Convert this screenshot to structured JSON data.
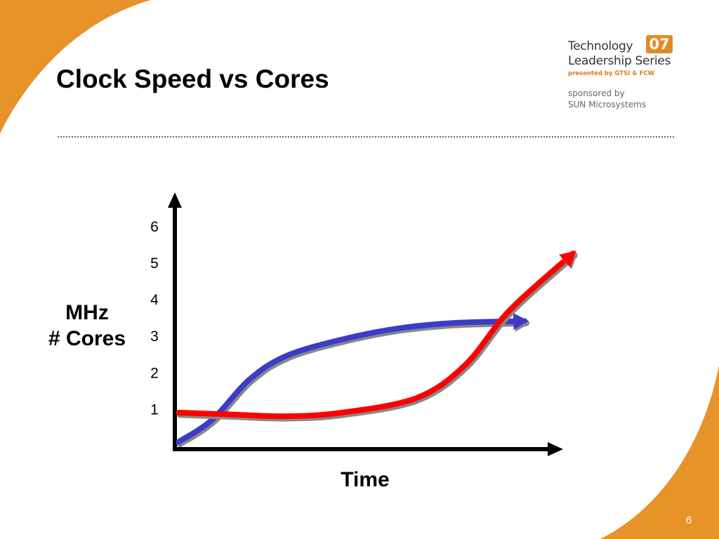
{
  "slide": {
    "title": "Clock Speed vs Cores",
    "page_number": "6",
    "theme_color": "#e8922a"
  },
  "logo": {
    "line1": "Technology",
    "badge": "07",
    "line2": "Leadership Series",
    "presented": "presented by GTSI & FCW",
    "sponsored_by": "sponsored by",
    "sponsor": "SUN Microsystems"
  },
  "chart_data": {
    "type": "line",
    "xlabel": "Time",
    "ylabel_lines": [
      "MHz",
      "# Cores"
    ],
    "yticks": [
      "1",
      "2",
      "3",
      "4",
      "5",
      "6"
    ],
    "ylim": [
      0,
      6.5
    ],
    "xlim": [
      0,
      10
    ],
    "grid": false,
    "series": [
      {
        "color": "#3c3cc8",
        "points": [
          [
            0.1,
            0.2
          ],
          [
            1.0,
            0.8
          ],
          [
            2.0,
            1.9
          ],
          [
            3.0,
            2.55
          ],
          [
            4.5,
            3.0
          ],
          [
            6.0,
            3.3
          ],
          [
            7.5,
            3.45
          ],
          [
            9.4,
            3.5
          ]
        ]
      },
      {
        "color": "#ff0000",
        "points": [
          [
            0.1,
            1.0
          ],
          [
            1.5,
            0.95
          ],
          [
            3.0,
            0.9
          ],
          [
            4.5,
            1.0
          ],
          [
            6.5,
            1.4
          ],
          [
            7.8,
            2.3
          ],
          [
            9.0,
            3.8
          ],
          [
            10.7,
            5.35
          ]
        ]
      }
    ]
  }
}
